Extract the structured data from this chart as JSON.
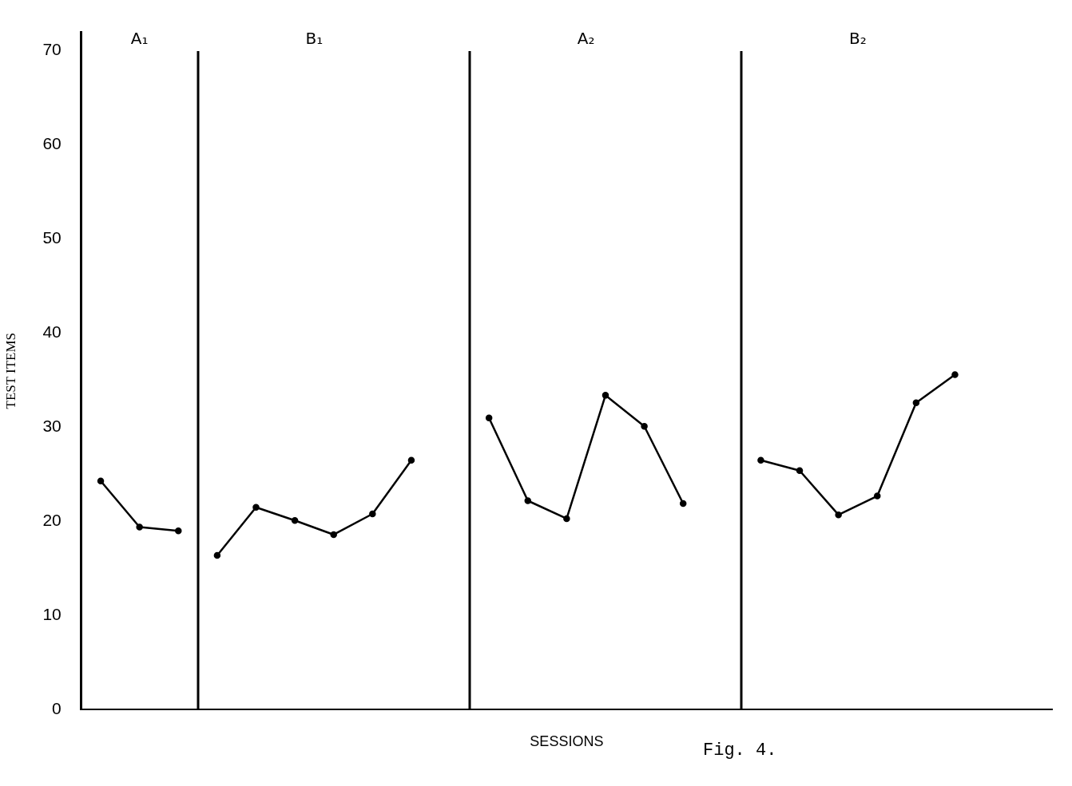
{
  "chart_data": {
    "type": "line",
    "xlabel": "SESSIONS",
    "ylabel": "TEST ITEMS",
    "categories": [
      null,
      null,
      null,
      null,
      null,
      null,
      null,
      null,
      null,
      null,
      null,
      null,
      null,
      null,
      null,
      null,
      null,
      null,
      null,
      null,
      null,
      null,
      null,
      null,
      null
    ],
    "ylim": [
      0,
      72
    ],
    "yticks": [
      0,
      10,
      20,
      30,
      40,
      50,
      60,
      70
    ],
    "tick_labels": "y",
    "grid": false,
    "legend": false,
    "marker": "circle",
    "line_style": "solid",
    "series": [
      {
        "color": "#000000",
        "values": [
          24.3,
          19.4,
          19.0,
          null,
          null,
          null,
          null,
          null,
          null,
          null,
          null,
          null,
          null,
          null,
          null,
          null,
          null,
          null,
          null,
          null,
          null,
          null,
          null,
          null,
          null
        ]
      },
      {
        "color": "#000000",
        "values": [
          null,
          null,
          null,
          16.4,
          21.5,
          20.1,
          18.6,
          20.8,
          26.5,
          null,
          null,
          null,
          null,
          null,
          null,
          null,
          null,
          null,
          null,
          null,
          null,
          null,
          null,
          null,
          null
        ]
      },
      {
        "color": "#000000",
        "values": [
          null,
          null,
          null,
          null,
          null,
          null,
          null,
          null,
          null,
          null,
          31.0,
          22.2,
          20.3,
          33.4,
          30.1,
          21.9,
          null,
          null,
          null,
          null,
          null,
          null,
          null,
          null,
          null
        ]
      },
      {
        "color": "#000000",
        "values": [
          null,
          null,
          null,
          null,
          null,
          null,
          null,
          null,
          null,
          null,
          null,
          null,
          null,
          null,
          null,
          null,
          null,
          26.5,
          25.4,
          20.7,
          22.7,
          32.6,
          35.6,
          null,
          null
        ]
      }
    ],
    "annotations": [
      "A₁",
      "B₁",
      "A₂",
      "B₂",
      "Fig. 4."
    ]
  }
}
